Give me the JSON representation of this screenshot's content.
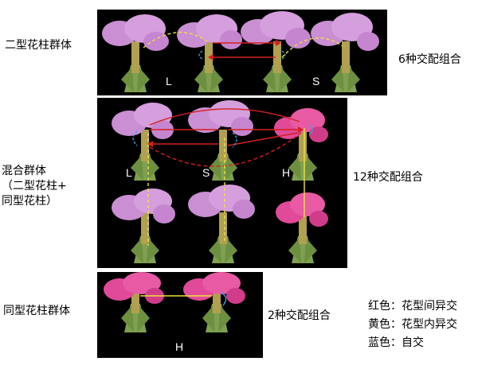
{
  "panels": {
    "distyly": {
      "group_label": "二型花柱群体",
      "combo_label": "6种交配组合",
      "morph_labels": [
        "L",
        "S"
      ]
    },
    "mixed": {
      "group_label_lines": [
        "混合群体",
        "（二型花柱+",
        "同型花柱）"
      ],
      "combo_label": "12种交配组合",
      "morph_labels": [
        "L",
        "S",
        "H"
      ]
    },
    "homostyly": {
      "group_label": "同型花柱群体",
      "combo_label": "2种交配组合",
      "morph_labels": [
        "H"
      ]
    }
  },
  "legend": [
    {
      "text": "红色：花型间异交",
      "color": "#d42020"
    },
    {
      "text": "黄色：花型内异交",
      "color": "#f0e040"
    },
    {
      "text": "蓝色：自交",
      "color": "#3aa0e0"
    }
  ],
  "colors": {
    "panel_bg": "#000000",
    "petal_lilac": "#c98fd2",
    "petal_pink": "#e04a98",
    "sepal_green": "#7fa050",
    "inter_morph": "#d42020",
    "intra_morph": "#f0e040",
    "self": "#3aa0e0"
  }
}
